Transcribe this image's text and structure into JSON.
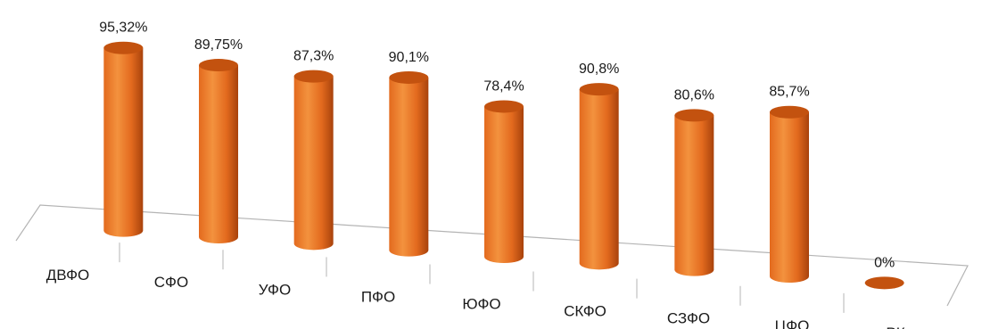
{
  "chart_data": {
    "type": "bar",
    "style": "3d-cylinder",
    "categories": [
      "ДВФО",
      "СФО",
      "УФО",
      "ПФО",
      "ЮФО",
      "СКФО",
      "СЗФО",
      "ЦФО",
      "РК"
    ],
    "values": [
      95.32,
      89.75,
      87.3,
      90.1,
      78.4,
      90.8,
      80.6,
      85.7,
      0
    ],
    "value_labels": [
      "95,32%",
      "89,75%",
      "87,3%",
      "90,1%",
      "78,4%",
      "90,8%",
      "80,6%",
      "85,7%",
      "0%"
    ],
    "unit": "%",
    "ylim": [
      0,
      100
    ],
    "colors": {
      "bar_light": "#f3923e",
      "bar_mid": "#e36a1e",
      "bar_dark": "#a8420c",
      "bar_top": "#c3520f",
      "floor_line": "#b4b4b4",
      "text": "#1a1a1a"
    },
    "grid": false,
    "legend": "none"
  }
}
